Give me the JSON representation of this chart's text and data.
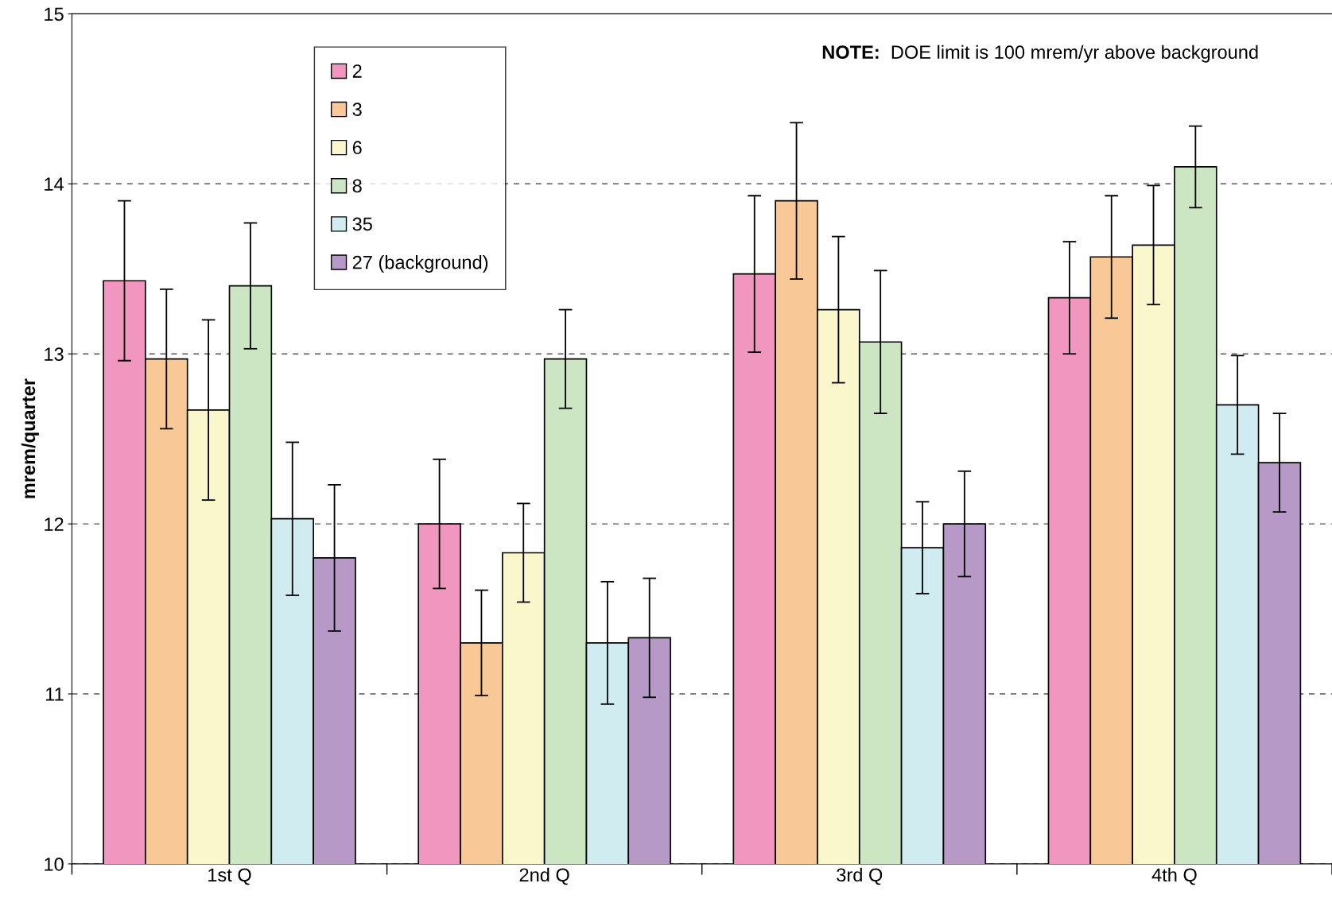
{
  "chart_data": {
    "type": "bar",
    "ylabel": "mrem/quarter",
    "categories": [
      "1st Q",
      "2nd Q",
      "3rd Q",
      "4th Q"
    ],
    "series": [
      {
        "name": "2",
        "color": "#f197bf",
        "values": [
          13.43,
          12.0,
          13.47,
          13.33
        ],
        "errors": [
          0.47,
          0.38,
          0.46,
          0.33
        ]
      },
      {
        "name": "3",
        "color": "#f9c897",
        "values": [
          12.97,
          11.3,
          13.9,
          13.57
        ],
        "errors": [
          0.41,
          0.31,
          0.46,
          0.36
        ]
      },
      {
        "name": "6",
        "color": "#fbf7cc",
        "values": [
          12.67,
          11.83,
          13.26,
          13.64
        ],
        "errors": [
          0.53,
          0.29,
          0.43,
          0.35
        ]
      },
      {
        "name": "8",
        "color": "#cce6c3",
        "values": [
          13.4,
          12.97,
          13.07,
          14.1
        ],
        "errors": [
          0.37,
          0.29,
          0.42,
          0.24
        ]
      },
      {
        "name": "35",
        "color": "#d0ecf0",
        "values": [
          12.03,
          11.3,
          11.86,
          12.7
        ],
        "errors": [
          0.45,
          0.36,
          0.27,
          0.29
        ]
      },
      {
        "name": "27 (background)",
        "color": "#b799c8",
        "values": [
          11.8,
          11.33,
          12.0,
          12.36
        ],
        "errors": [
          0.43,
          0.35,
          0.31,
          0.29
        ]
      }
    ],
    "ylim": [
      10,
      15
    ],
    "yticks": [
      10,
      11,
      12,
      13,
      14,
      15
    ],
    "grid": "y",
    "line_style": "dashed",
    "legend": "top left",
    "annotations": [
      "NOTE:  DOE limit is 100 mrem/yr above background"
    ]
  }
}
